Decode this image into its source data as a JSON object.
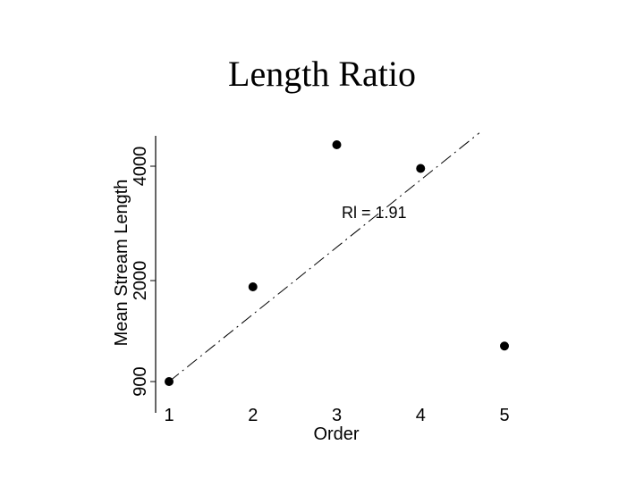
{
  "chart_data": {
    "type": "scatter",
    "title": "Length Ratio",
    "xlabel": "Order",
    "ylabel": "Mean Stream Length",
    "x": [
      1,
      2,
      3,
      4,
      5
    ],
    "y": [
      900,
      2500,
      4900,
      4500,
      1500
    ],
    "xticks": [
      "1",
      "2",
      "3",
      "4",
      "5"
    ],
    "yticks": [
      {
        "value": 900,
        "label": "900"
      },
      {
        "value": 2000,
        "label": "2000"
      },
      {
        "value": 4000,
        "label": "4000"
      }
    ],
    "xlim": [
      1,
      5
    ],
    "ylim": [
      900,
      4900
    ],
    "fit_line": {
      "x": [
        1,
        4.7
      ],
      "y": [
        900,
        5100
      ]
    },
    "annotation": "Rl = 1.91",
    "grid": false,
    "legend": "none"
  }
}
